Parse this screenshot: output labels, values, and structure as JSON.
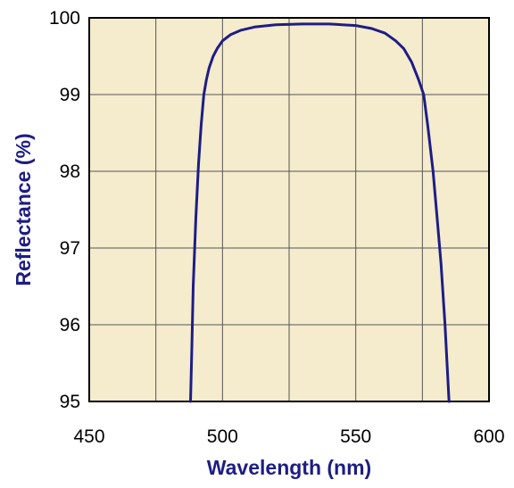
{
  "chart_data": {
    "type": "line",
    "title": "",
    "xlabel": "Wavelength (nm)",
    "ylabel": "Reflectance (%)",
    "xlim": [
      450,
      600
    ],
    "ylim": [
      95,
      100
    ],
    "x_ticks": [
      450,
      475,
      500,
      525,
      550,
      575,
      600
    ],
    "x_tick_labels": [
      "450",
      "",
      "500",
      "",
      "550",
      "",
      "600"
    ],
    "y_ticks": [
      95,
      96,
      97,
      98,
      99,
      100
    ],
    "y_tick_labels": [
      "95",
      "96",
      "97",
      "98",
      "99",
      "100"
    ],
    "grid": true,
    "legend": "none",
    "colors": {
      "plot_background": "#f5ebcd",
      "grid": "#555555",
      "frame": "#000000",
      "series": "#1d1d85",
      "axis_title": "#1d1d85"
    },
    "series": [
      {
        "x": [
          488.0,
          488.5,
          489.0,
          490.0,
          491.0,
          492.0,
          493.0,
          494.0,
          495.0,
          496.5,
          498.0,
          500.0,
          503.0,
          507.0,
          512.0,
          520.0,
          530.0,
          540.0,
          550.0,
          556.0,
          561.0,
          565.0,
          568.0,
          571.0,
          573.5,
          575.5,
          577.0,
          579.0,
          580.5,
          582.0,
          583.5,
          585.0
        ],
        "y": [
          95.0,
          95.7,
          96.5,
          97.4,
          98.1,
          98.6,
          99.0,
          99.2,
          99.35,
          99.5,
          99.6,
          99.7,
          99.78,
          99.84,
          99.88,
          99.91,
          99.92,
          99.92,
          99.9,
          99.86,
          99.8,
          99.7,
          99.6,
          99.42,
          99.2,
          99.0,
          98.6,
          98.0,
          97.4,
          96.8,
          96.0,
          95.0
        ]
      }
    ]
  }
}
